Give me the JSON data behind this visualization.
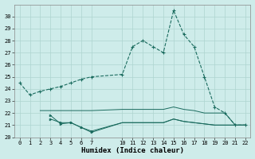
{
  "line1_x": [
    0,
    1,
    2,
    3,
    4,
    5,
    6,
    7,
    10,
    11,
    12,
    13,
    14,
    15,
    16,
    17,
    18,
    19,
    20,
    21,
    22
  ],
  "line1_y": [
    24.5,
    23.5,
    23.8,
    24.0,
    24.2,
    24.5,
    24.8,
    25.0,
    25.2,
    27.5,
    28.0,
    27.5,
    27.0,
    30.5,
    28.5,
    27.5,
    25.0,
    22.5,
    22.0,
    21.0,
    21.0
  ],
  "line2_x": [
    2,
    3,
    4,
    5,
    6,
    7,
    10,
    11,
    12,
    13,
    14,
    15,
    16,
    17,
    18,
    19,
    20,
    21,
    22
  ],
  "line2_y": [
    22.2,
    22.2,
    22.2,
    22.2,
    22.2,
    22.2,
    22.3,
    22.3,
    22.3,
    22.3,
    22.3,
    22.5,
    22.3,
    22.2,
    22.0,
    22.0,
    22.0,
    21.0,
    21.0
  ],
  "line3_x": [
    3,
    4,
    5,
    6,
    7,
    10,
    11,
    12,
    13,
    14,
    15,
    16,
    17,
    18,
    19,
    20,
    21,
    22
  ],
  "line3_y": [
    21.5,
    21.2,
    21.2,
    20.8,
    20.5,
    21.2,
    21.2,
    21.2,
    21.2,
    21.2,
    21.5,
    21.3,
    21.2,
    21.1,
    21.0,
    21.0,
    21.0,
    21.0
  ],
  "line4_x": [
    3,
    4,
    5,
    6,
    7,
    10,
    11,
    12,
    13,
    14,
    15,
    16,
    17,
    18,
    19,
    20,
    21,
    22
  ],
  "line4_y": [
    21.8,
    21.1,
    21.2,
    20.8,
    20.4,
    21.2,
    21.2,
    21.2,
    21.2,
    21.2,
    21.5,
    21.3,
    21.2,
    21.1,
    21.0,
    21.0,
    21.0,
    21.0
  ],
  "color": "#1a6b5e",
  "bg_color": "#ceecea",
  "grid_color": "#aed4d0",
  "xlabel": "Humidex (Indice chaleur)",
  "ylim": [
    20,
    31
  ],
  "xlim": [
    -0.5,
    22.5
  ],
  "yticks": [
    20,
    21,
    22,
    23,
    24,
    25,
    26,
    27,
    28,
    29,
    30
  ],
  "xticks": [
    0,
    1,
    2,
    3,
    4,
    5,
    6,
    7,
    10,
    11,
    12,
    13,
    14,
    15,
    16,
    17,
    18,
    19,
    20,
    21,
    22
  ]
}
